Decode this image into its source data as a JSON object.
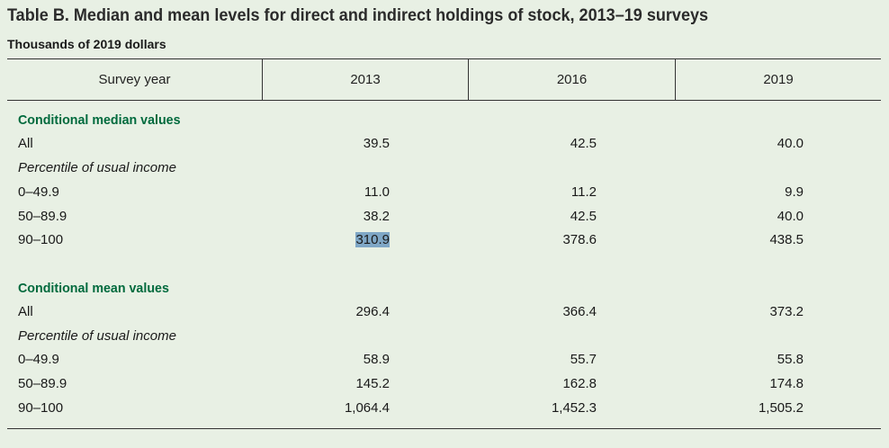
{
  "title": "Table B. Median and mean levels for direct and indirect holdings of stock, 2013–19 surveys",
  "subtitle": "Thousands of 2019 dollars",
  "header": {
    "col0": "Survey year",
    "col1": "2013",
    "col2": "2016",
    "col3": "2019"
  },
  "rows": [
    {
      "label": "Conditional median values",
      "v1": "",
      "v2": "",
      "v3": ""
    },
    {
      "label": "All",
      "v1": "39.5",
      "v2": "42.5",
      "v3": "40.0"
    },
    {
      "label": "Percentile of usual income",
      "v1": "",
      "v2": "",
      "v3": ""
    },
    {
      "label": "0–49.9",
      "v1": "11.0",
      "v2": "11.2",
      "v3": "9.9"
    },
    {
      "label": "50–89.9",
      "v1": "38.2",
      "v2": "42.5",
      "v3": "40.0"
    },
    {
      "label": "90–100",
      "v1": "310.9",
      "v2": "378.6",
      "v3": "438.5"
    },
    {
      "label": "Conditional mean values",
      "v1": "",
      "v2": "",
      "v3": ""
    },
    {
      "label": "All",
      "v1": "296.4",
      "v2": "366.4",
      "v3": "373.2"
    },
    {
      "label": "Percentile of usual income",
      "v1": "",
      "v2": "",
      "v3": ""
    },
    {
      "label": "0–49.9",
      "v1": "58.9",
      "v2": "55.7",
      "v3": "55.8"
    },
    {
      "label": "50–89.9",
      "v1": "145.2",
      "v2": "162.8",
      "v3": "174.8"
    },
    {
      "label": "90–100",
      "v1": "1,064.4",
      "v2": "1,452.3",
      "v3": "1,505.2"
    }
  ],
  "colors": {
    "background": "#e8f0e4",
    "section_heading": "#006a3d",
    "selection_highlight": "#7fa7c6"
  }
}
